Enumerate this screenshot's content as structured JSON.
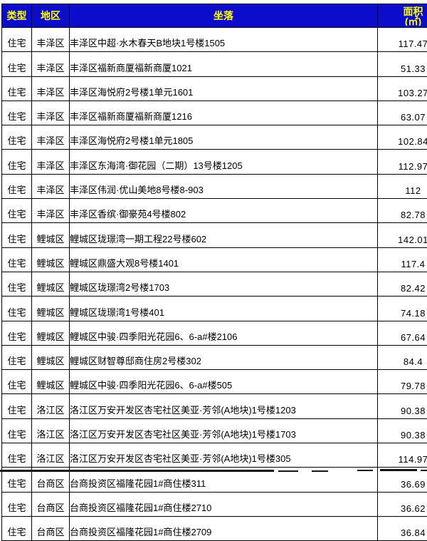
{
  "colors": {
    "header_bg": "#0C0CCD",
    "header_text": "#FFFF00",
    "border": "#000000",
    "body_bg": "#FFFFFF",
    "body_text": "#000000"
  },
  "table": {
    "columns": {
      "type_label": "类型",
      "district_label": "地区",
      "location_label": "坐落",
      "area_label": "面积",
      "area_unit_label": "(㎡)"
    },
    "rows": [
      {
        "type": "住宅",
        "district": "丰泽区",
        "location": "丰泽区中超·水木春天B地块1号楼1505",
        "area": "117.47"
      },
      {
        "type": "住宅",
        "district": "丰泽区",
        "location": "丰泽区福新商厦福新商厦1021",
        "area": "51.33"
      },
      {
        "type": "住宅",
        "district": "丰泽区",
        "location": "丰泽区海悦府2号楼1单元1601",
        "area": "103.27"
      },
      {
        "type": "住宅",
        "district": "丰泽区",
        "location": "丰泽区福新商厦福新商厦1216",
        "area": "63.07"
      },
      {
        "type": "住宅",
        "district": "丰泽区",
        "location": "丰泽区海悦府2号楼1单元1805",
        "area": "102.84"
      },
      {
        "type": "住宅",
        "district": "丰泽区",
        "location": "丰泽区东海湾·御花园（二期）13号楼1205",
        "area": "112.97"
      },
      {
        "type": "住宅",
        "district": "丰泽区",
        "location": "丰泽区伟润·优山美地8号楼8-903",
        "area": "112"
      },
      {
        "type": "住宅",
        "district": "丰泽区",
        "location": "丰泽区香缤·御豪苑4号楼802",
        "area": "82.78"
      },
      {
        "type": "住宅",
        "district": "鲤城区",
        "location": "鲤城区珑璟湾一期工程22号楼602",
        "area": "142.01"
      },
      {
        "type": "住宅",
        "district": "鲤城区",
        "location": "鲤城区鼎盛大观8号楼1401",
        "area": "117.4"
      },
      {
        "type": "住宅",
        "district": "鲤城区",
        "location": "鲤城区珑璟湾2号楼1703",
        "area": "82.42"
      },
      {
        "type": "住宅",
        "district": "鲤城区",
        "location": "鲤城区珑璟湾1号楼401",
        "area": "74.18"
      },
      {
        "type": "住宅",
        "district": "鲤城区",
        "location": "鲤城区中骏·四季阳光花园6、6-a#楼2106",
        "area": "67.64"
      },
      {
        "type": "住宅",
        "district": "鲤城区",
        "location": "鲤城区财智尊邸商住房2号楼302",
        "area": "84.4"
      },
      {
        "type": "住宅",
        "district": "鲤城区",
        "location": "鲤城区中骏·四季阳光花园6、6-a#楼505",
        "area": "79.78"
      },
      {
        "type": "住宅",
        "district": "洛江区",
        "location": "洛江区万安开发区杏宅社区美亚·芳邻(A地块)1号楼1203",
        "area": "90.38"
      },
      {
        "type": "住宅",
        "district": "洛江区",
        "location": "洛江区万安开发区杏宅社区美亚·芳邻(A地块)1号楼1703",
        "area": "90.38"
      },
      {
        "type": "住宅",
        "district": "洛江区",
        "location": "洛江区万安开发区杏宅社区美亚·芳邻(A地块)1号楼305",
        "area": "114.97"
      },
      {
        "type": "住宅",
        "district": "台商区",
        "location": "台商投资区福隆花园1#商住楼311",
        "area": "36.69"
      },
      {
        "type": "住宅",
        "district": "台商区",
        "location": "台商投资区福隆花园1#商住楼2710",
        "area": "36.62"
      },
      {
        "type": "住宅",
        "district": "台商区",
        "location": "台商投资区福隆花园1#商住楼2709",
        "area": "36.84"
      }
    ]
  }
}
